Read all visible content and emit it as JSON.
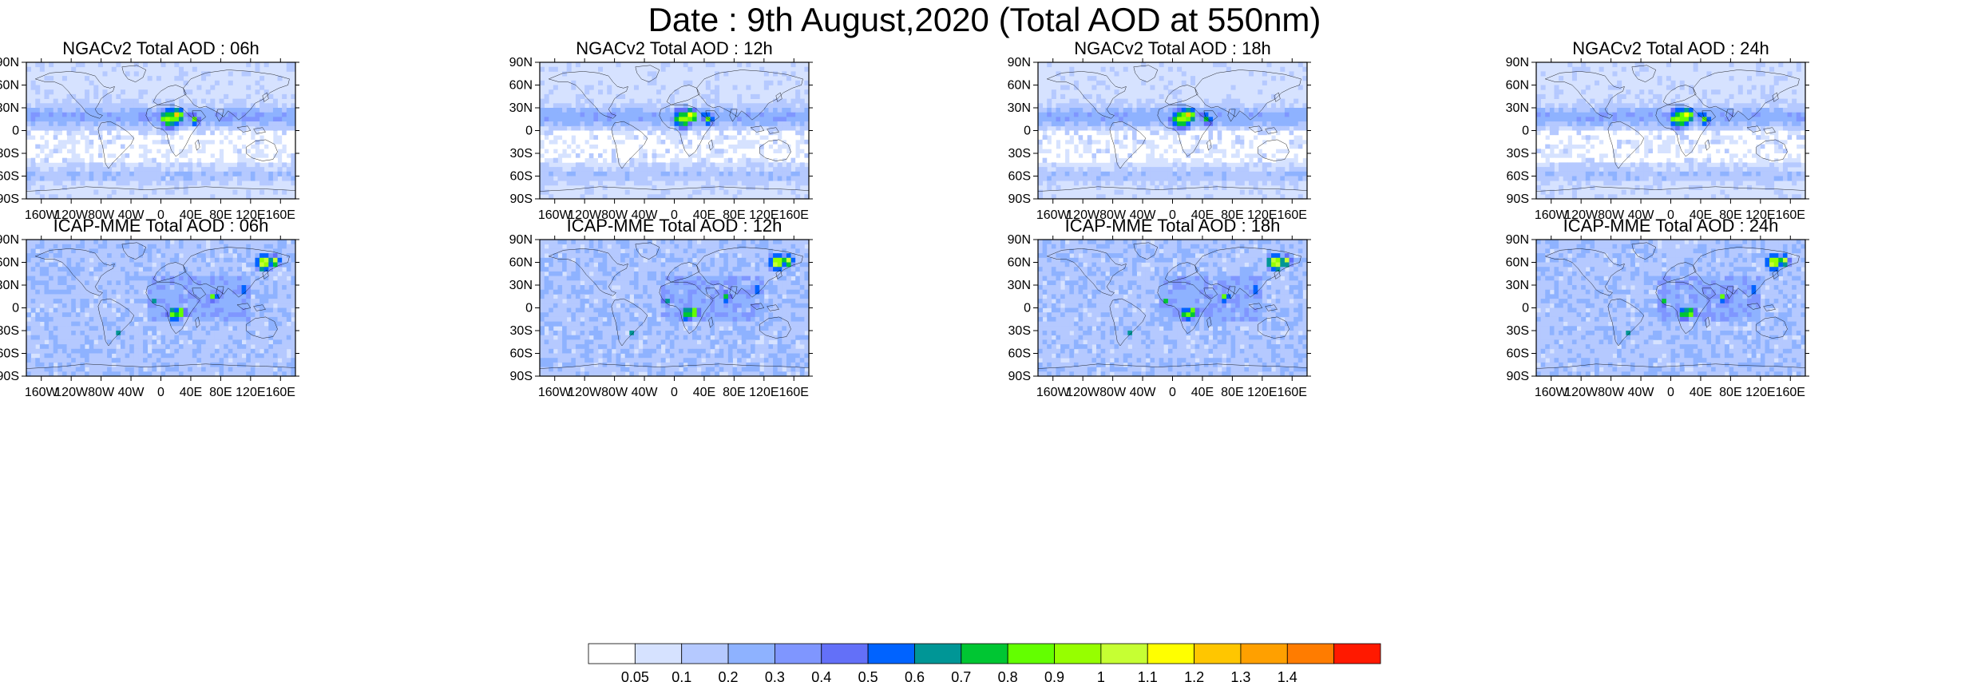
{
  "title": "Date : 9th August,2020 (Total AOD at 550nm)",
  "panels": [
    {
      "title": "NGACv2 Total AOD : 06h",
      "model": "NGACv2",
      "hour": 6
    },
    {
      "title": "NGACv2 Total AOD : 12h",
      "model": "NGACv2",
      "hour": 12
    },
    {
      "title": "NGACv2 Total AOD : 18h",
      "model": "NGACv2",
      "hour": 18
    },
    {
      "title": "NGACv2 Total AOD : 24h",
      "model": "NGACv2",
      "hour": 24
    },
    {
      "title": "ICAP-MME Total AOD : 06h",
      "model": "ICAP-MME",
      "hour": 6
    },
    {
      "title": "ICAP-MME Total AOD : 12h",
      "model": "ICAP-MME",
      "hour": 12
    },
    {
      "title": "ICAP-MME Total AOD : 18h",
      "model": "ICAP-MME",
      "hour": 18
    },
    {
      "title": "ICAP-MME Total AOD : 24h",
      "model": "ICAP-MME",
      "hour": 24
    }
  ],
  "axes": {
    "lon_ticks": [
      -160,
      -120,
      -80,
      -40,
      0,
      40,
      80,
      120,
      160
    ],
    "lon_labels": [
      "160W",
      "120W",
      "80W",
      "40W",
      "0",
      "40E",
      "80E",
      "120E",
      "160E"
    ],
    "lat_ticks": [
      90,
      60,
      30,
      0,
      -30,
      -60,
      -90
    ],
    "lat_labels": [
      "90N",
      "60N",
      "30N",
      "0",
      "30S",
      "60S",
      "90S"
    ],
    "lon_range": [
      -180,
      180
    ],
    "lat_range": [
      -90,
      90
    ]
  },
  "colorbar": {
    "labels": [
      "0.05",
      "0.1",
      "0.2",
      "0.3",
      "0.4",
      "0.5",
      "0.6",
      "0.7",
      "0.8",
      "0.9",
      "1",
      "1.1",
      "1.2",
      "1.3",
      "1.4"
    ],
    "colors": [
      "#ffffff",
      "#d6e2ff",
      "#b5c9ff",
      "#8eb2ff",
      "#7f96ff",
      "#6370f8",
      "#0063ff",
      "#009696",
      "#00c633",
      "#63ff00",
      "#96ff00",
      "#c6ff33",
      "#ffff00",
      "#ffc600",
      "#ffa000",
      "#ff7c00",
      "#ff1900"
    ]
  }
}
